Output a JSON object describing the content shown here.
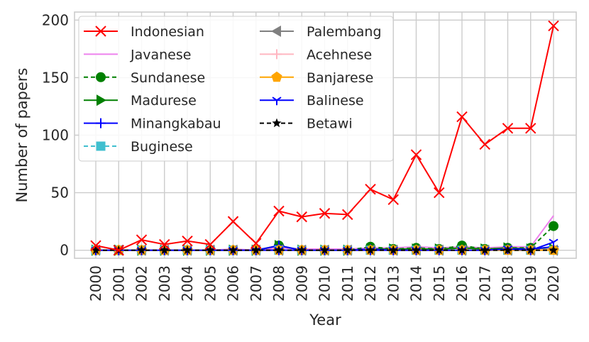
{
  "chart_data": {
    "type": "line",
    "xlabel": "Year",
    "ylabel": "Number of papers",
    "x": [
      "2000",
      "2001",
      "2002",
      "2003",
      "2004",
      "2005",
      "2006",
      "2007",
      "2008",
      "2009",
      "2010",
      "2011",
      "2012",
      "2013",
      "2014",
      "2015",
      "2016",
      "2017",
      "2018",
      "2019",
      "2020"
    ],
    "ylim": [
      -7,
      207
    ],
    "yticks": [
      0,
      50,
      100,
      150,
      200
    ],
    "grid": true,
    "legend_position": "top-left",
    "legend_columns": 2,
    "series": [
      {
        "name": "Indonesian",
        "color": "#ff0000",
        "marker": "x",
        "dash": "solid",
        "values": [
          4,
          0,
          9,
          5,
          8,
          5,
          25,
          6,
          34,
          29,
          32,
          31,
          53,
          44,
          83,
          50,
          116,
          92,
          106,
          106,
          195
        ]
      },
      {
        "name": "Javanese",
        "color": "#ee82ee",
        "marker": "none",
        "dash": "solid",
        "values": [
          0,
          0,
          0,
          0,
          0,
          0,
          1,
          0,
          2,
          1,
          1,
          1,
          2,
          2,
          3,
          2,
          3,
          2,
          3,
          3,
          30
        ]
      },
      {
        "name": "Sundanese",
        "color": "#008000",
        "marker": "circle",
        "dash": "dashed",
        "values": [
          0,
          0,
          0,
          0,
          0,
          0,
          0,
          0,
          4,
          0,
          0,
          0,
          3,
          1,
          2,
          1,
          4,
          1,
          2,
          2,
          21
        ]
      },
      {
        "name": "Madurese",
        "color": "#008000",
        "marker": "triangle-right",
        "dash": "solid",
        "values": [
          0,
          0,
          0,
          0,
          0,
          0,
          0,
          0,
          4,
          0,
          0,
          0,
          1,
          1,
          1,
          1,
          2,
          1,
          2,
          1,
          1
        ]
      },
      {
        "name": "Minangkabau",
        "color": "#0000ff",
        "marker": "plus",
        "dash": "solid",
        "values": [
          0,
          0,
          0,
          0,
          0,
          0,
          0,
          0,
          4,
          0,
          0,
          0,
          1,
          0,
          0,
          0,
          0,
          0,
          1,
          1,
          3
        ]
      },
      {
        "name": "Buginese",
        "color": "#40bfcf",
        "marker": "square",
        "dash": "dashed",
        "values": [
          0,
          0,
          0,
          0,
          0,
          0,
          0,
          0,
          0,
          0,
          0,
          0,
          0,
          0,
          0,
          0,
          0,
          0,
          0,
          0,
          0
        ]
      },
      {
        "name": "Palembang",
        "color": "#808080",
        "marker": "triangle-left",
        "dash": "solid",
        "values": [
          0,
          0,
          0,
          0,
          0,
          0,
          0,
          0,
          0,
          0,
          0,
          0,
          0,
          0,
          0,
          0,
          0,
          0,
          0,
          0,
          0
        ]
      },
      {
        "name": "Acehnese",
        "color": "#ffb6c1",
        "marker": "plus",
        "dash": "solid",
        "values": [
          0,
          0,
          0,
          0,
          0,
          0,
          0,
          0,
          0,
          0,
          0,
          0,
          0,
          0,
          0,
          0,
          0,
          0,
          0,
          0,
          1
        ]
      },
      {
        "name": "Banjarese",
        "color": "#ffa500",
        "marker": "pentagon",
        "dash": "solid",
        "values": [
          0,
          0,
          0,
          0,
          0,
          0,
          0,
          0,
          0,
          0,
          0,
          0,
          0,
          0,
          0,
          0,
          0,
          0,
          0,
          0,
          0
        ]
      },
      {
        "name": "Balinese",
        "color": "#0000ff",
        "marker": "tri-down",
        "dash": "solid",
        "values": [
          0,
          0,
          0,
          0,
          0,
          0,
          0,
          0,
          0,
          0,
          0,
          0,
          0,
          0,
          0,
          0,
          0,
          0,
          1,
          0,
          7
        ]
      },
      {
        "name": "Betawi",
        "color": "#000000",
        "marker": "star",
        "dash": "dashed",
        "values": [
          0,
          0,
          0,
          0,
          0,
          0,
          0,
          0,
          0,
          0,
          0,
          0,
          0,
          0,
          0,
          0,
          0,
          0,
          0,
          0,
          0
        ]
      }
    ]
  }
}
